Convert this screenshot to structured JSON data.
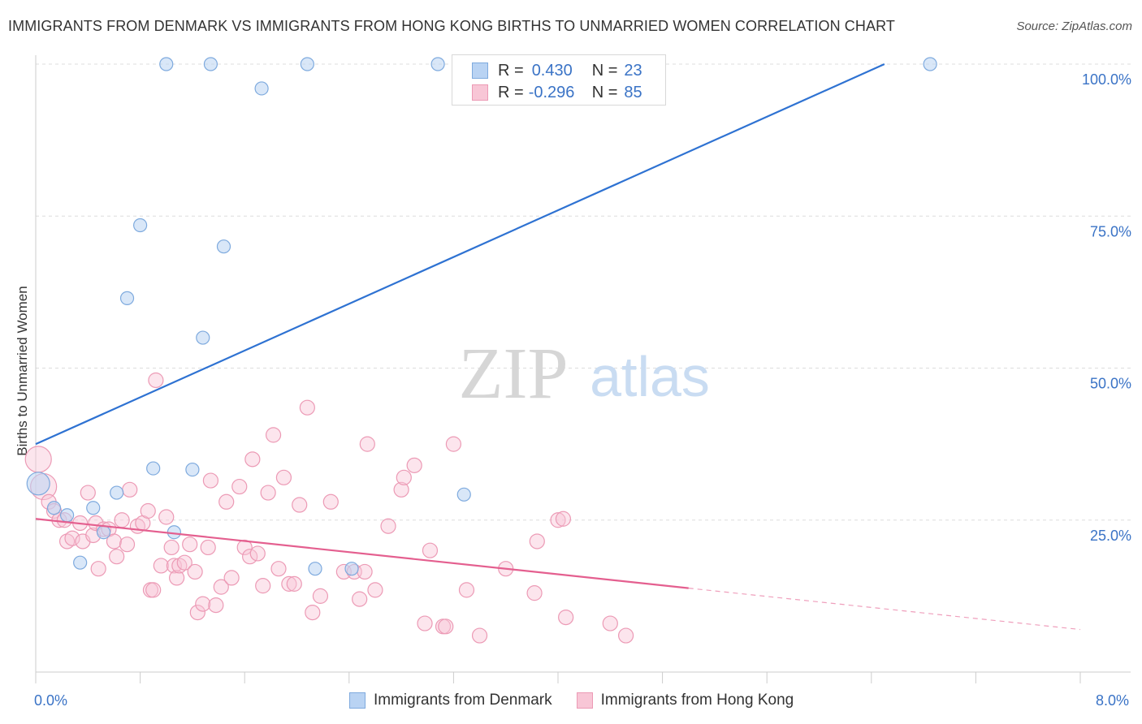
{
  "title": "IMMIGRANTS FROM DENMARK VS IMMIGRANTS FROM HONG KONG BIRTHS TO UNMARRIED WOMEN CORRELATION CHART",
  "source": "Source: ZipAtlas.com",
  "watermark": {
    "zip": "ZIP",
    "atlas": "atlas"
  },
  "legend": {
    "r_label": "R =",
    "n_label": "N =",
    "denmark": {
      "r": "0.430",
      "n": "23"
    },
    "hongkong": {
      "r": "-0.296",
      "n": "85"
    }
  },
  "colors": {
    "denmark_fill": "#b9d3f3",
    "denmark_stroke": "#7eaade",
    "denmark_line": "#2e72d2",
    "hongkong_fill": "#f8c6d6",
    "hongkong_stroke": "#ec9ab5",
    "hongkong_line": "#e45f8f",
    "grid": "#dddddd",
    "axis_text": "#3a73c6"
  },
  "chart_data": {
    "type": "scatter",
    "title": "IMMIGRANTS FROM DENMARK VS IMMIGRANTS FROM HONG KONG BIRTHS TO UNMARRIED WOMEN CORRELATION CHART",
    "xlabel": "",
    "ylabel": "Births to Unmarried Women",
    "xlim": [
      0,
      8
    ],
    "ylim": [
      0,
      102.5
    ],
    "x_tick_labels": [
      "0.0%",
      "8.0%"
    ],
    "y_ticks": [
      25,
      50,
      75,
      100
    ],
    "y_tick_labels": [
      "25.0%",
      "50.0%",
      "75.0%",
      "100.0%"
    ],
    "grid": true,
    "legend_position": "top-center",
    "series": [
      {
        "name": "Immigrants from Denmark",
        "points": [
          [
            0.02,
            31.0
          ],
          [
            0.14,
            27.0
          ],
          [
            0.24,
            25.8
          ],
          [
            0.34,
            18.0
          ],
          [
            0.44,
            27.0
          ],
          [
            0.52,
            23.0
          ],
          [
            0.62,
            29.5
          ],
          [
            0.7,
            61.5
          ],
          [
            0.8,
            73.5
          ],
          [
            0.9,
            33.5
          ],
          [
            1.0,
            100.0
          ],
          [
            1.06,
            23.0
          ],
          [
            1.2,
            33.3
          ],
          [
            1.28,
            55.0
          ],
          [
            1.34,
            100.0
          ],
          [
            1.44,
            70.0
          ],
          [
            1.73,
            96.0
          ],
          [
            2.08,
            100.0
          ],
          [
            2.14,
            17.0
          ],
          [
            2.42,
            17.0
          ],
          [
            3.08,
            100.0
          ],
          [
            3.28,
            29.2
          ],
          [
            6.85,
            100.0
          ]
        ],
        "trend": {
          "x": [
            0.0,
            6.5
          ],
          "y": [
            37.5,
            100.0
          ]
        }
      },
      {
        "name": "Immigrants from Hong Kong",
        "points": [
          [
            0.02,
            35.0
          ],
          [
            0.06,
            30.5
          ],
          [
            0.1,
            28.0
          ],
          [
            0.14,
            26.5
          ],
          [
            0.18,
            25.0
          ],
          [
            0.22,
            25.0
          ],
          [
            0.24,
            21.5
          ],
          [
            0.28,
            22.0
          ],
          [
            0.34,
            24.5
          ],
          [
            0.36,
            21.5
          ],
          [
            0.4,
            29.5
          ],
          [
            0.44,
            22.5
          ],
          [
            0.46,
            24.5
          ],
          [
            0.48,
            17.0
          ],
          [
            0.52,
            23.5
          ],
          [
            0.56,
            23.5
          ],
          [
            0.6,
            21.5
          ],
          [
            0.62,
            19.0
          ],
          [
            0.66,
            25.0
          ],
          [
            0.7,
            21.0
          ],
          [
            0.72,
            30.0
          ],
          [
            0.78,
            24.0
          ],
          [
            0.82,
            24.5
          ],
          [
            0.86,
            26.5
          ],
          [
            0.88,
            13.5
          ],
          [
            0.9,
            13.5
          ],
          [
            0.92,
            48.0
          ],
          [
            0.96,
            17.5
          ],
          [
            1.0,
            25.5
          ],
          [
            1.04,
            20.5
          ],
          [
            1.06,
            17.5
          ],
          [
            1.08,
            15.5
          ],
          [
            1.1,
            17.5
          ],
          [
            1.14,
            18.0
          ],
          [
            1.18,
            21.0
          ],
          [
            1.22,
            16.5
          ],
          [
            1.24,
            9.8
          ],
          [
            1.28,
            11.2
          ],
          [
            1.32,
            20.5
          ],
          [
            1.34,
            31.5
          ],
          [
            1.38,
            11.0
          ],
          [
            1.42,
            14.0
          ],
          [
            1.46,
            28.0
          ],
          [
            1.5,
            15.5
          ],
          [
            1.56,
            30.5
          ],
          [
            1.6,
            20.5
          ],
          [
            1.64,
            19.0
          ],
          [
            1.66,
            35.0
          ],
          [
            1.7,
            19.5
          ],
          [
            1.74,
            14.2
          ],
          [
            1.78,
            29.5
          ],
          [
            1.82,
            39.0
          ],
          [
            1.86,
            17.0
          ],
          [
            1.9,
            32.0
          ],
          [
            1.94,
            14.5
          ],
          [
            1.98,
            14.5
          ],
          [
            2.02,
            27.5
          ],
          [
            2.08,
            43.5
          ],
          [
            2.12,
            9.8
          ],
          [
            2.18,
            12.5
          ],
          [
            2.26,
            28.0
          ],
          [
            2.36,
            16.5
          ],
          [
            2.44,
            16.5
          ],
          [
            2.48,
            12.0
          ],
          [
            2.52,
            16.5
          ],
          [
            2.54,
            37.5
          ],
          [
            2.6,
            13.5
          ],
          [
            2.7,
            24.0
          ],
          [
            2.8,
            30.0
          ],
          [
            2.82,
            32.0
          ],
          [
            2.9,
            34.0
          ],
          [
            2.98,
            8.0
          ],
          [
            3.02,
            20.0
          ],
          [
            3.12,
            7.5
          ],
          [
            3.14,
            7.5
          ],
          [
            3.2,
            37.5
          ],
          [
            3.3,
            13.5
          ],
          [
            3.4,
            6.0
          ],
          [
            3.6,
            17.0
          ],
          [
            3.82,
            13.0
          ],
          [
            3.84,
            21.5
          ],
          [
            4.0,
            25.0
          ],
          [
            4.04,
            25.2
          ],
          [
            4.06,
            9.0
          ],
          [
            4.4,
            8.0
          ],
          [
            4.52,
            6.0
          ]
        ],
        "trend": {
          "x": [
            0.0,
            5.0
          ],
          "y": [
            25.2,
            13.8
          ]
        },
        "trend_dashed": {
          "x": [
            5.0,
            8.0
          ],
          "y": [
            13.8,
            7.0
          ]
        }
      }
    ]
  },
  "bottom_legend": [
    "Immigrants from Denmark",
    "Immigrants from Hong Kong"
  ]
}
